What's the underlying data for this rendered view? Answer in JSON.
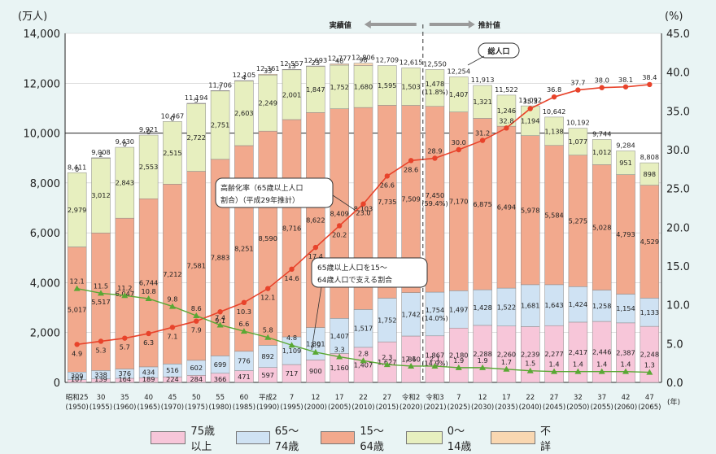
{
  "chart_data": {
    "type": "bar",
    "y_left_unit": "(万人)",
    "y_right_unit": "(%)",
    "y_left_ticks": [
      "0",
      "2,000",
      "4,000",
      "6,000",
      "8,000",
      "10,000",
      "12,000",
      "14,000"
    ],
    "y_right_ticks": [
      "0.0",
      "5.0",
      "10.0",
      "15.0",
      "20.0",
      "25.0",
      "30.0",
      "35.0",
      "40.0",
      "45.0"
    ],
    "x_unit": "(年)",
    "categories": [
      {
        "top": "昭和25",
        "bottom": "(1950)"
      },
      {
        "top": "30",
        "bottom": "(1955)"
      },
      {
        "top": "35",
        "bottom": "(1960)"
      },
      {
        "top": "40",
        "bottom": "(1965)"
      },
      {
        "top": "45",
        "bottom": "(1970)"
      },
      {
        "top": "50",
        "bottom": "(1975)"
      },
      {
        "top": "55",
        "bottom": "(1980)"
      },
      {
        "top": "60",
        "bottom": "(1985)"
      },
      {
        "top": "平成2",
        "bottom": "(1990)"
      },
      {
        "top": "7",
        "bottom": "(1995)"
      },
      {
        "top": "12",
        "bottom": "(2000)"
      },
      {
        "top": "17",
        "bottom": "(2005)"
      },
      {
        "top": "22",
        "bottom": "(2010)"
      },
      {
        "top": "27",
        "bottom": "(2015)"
      },
      {
        "top": "令和2",
        "bottom": "(2020)"
      },
      {
        "top": "令和3",
        "bottom": "(2021)"
      },
      {
        "top": "7",
        "bottom": "(2025)"
      },
      {
        "top": "12",
        "bottom": "(2030)"
      },
      {
        "top": "17",
        "bottom": "(2035)"
      },
      {
        "top": "22",
        "bottom": "(2040)"
      },
      {
        "top": "27",
        "bottom": "(2045)"
      },
      {
        "top": "32",
        "bottom": "(2050)"
      },
      {
        "top": "37",
        "bottom": "(2055)"
      },
      {
        "top": "42",
        "bottom": "(2060)"
      },
      {
        "top": "47",
        "bottom": "(2065)"
      }
    ],
    "totals": [
      "8,411",
      "9,008",
      "9,430",
      "9,921",
      "10,467",
      "11,194",
      "11,706",
      "12,105",
      "12,361",
      "12,557",
      "12,693",
      "12,777",
      "12,806",
      "12,709",
      "12,615",
      "12,550",
      "12,254",
      "11,913",
      "11,522",
      "11,092",
      "10,642",
      "10,192",
      "9,744",
      "9,284",
      "8,808"
    ],
    "total_values": [
      8411,
      9008,
      9430,
      9921,
      10467,
      11194,
      11706,
      12105,
      12361,
      12557,
      12693,
      12777,
      12806,
      12709,
      12615,
      12550,
      12254,
      11913,
      11522,
      11092,
      10642,
      10192,
      9744,
      9284,
      8808
    ],
    "series": [
      {
        "name": "75歳以上",
        "color": "#f7c6d9",
        "values": [
          107,
          139,
          164,
          189,
          224,
          284,
          366,
          471,
          597,
          717,
          900,
          1160,
          1407,
          1627,
          1860,
          1867,
          2180,
          2288,
          2260,
          2239,
          2277,
          2417,
          2446,
          2387,
          2248
        ],
        "labels": [
          "107",
          "139",
          "164",
          "189",
          "224",
          "284",
          "366",
          "471",
          "597",
          "717",
          "900",
          "1,160",
          "1,407",
          "1,627",
          "1,860",
          "1,867\n(14.9%)",
          "2,180",
          "2,288",
          "2,260",
          "2,239",
          "2,277",
          "2,417",
          "2,446",
          "2,387",
          "2,248"
        ]
      },
      {
        "name": "65～74歳",
        "color": "#cfe2f3",
        "values": [
          309,
          338,
          376,
          434,
          516,
          602,
          699,
          776,
          892,
          1109,
          1301,
          1407,
          1517,
          1752,
          1742,
          1754,
          1497,
          1428,
          1522,
          1681,
          1643,
          1424,
          1258,
          1154,
          1133
        ],
        "labels": [
          "309",
          "338",
          "376",
          "434",
          "516",
          "602",
          "699",
          "776",
          "892",
          "1,109",
          "1,301",
          "1,407",
          "1,517",
          "1,752",
          "1,742",
          "1,754\n(14.0%)",
          "1,497",
          "1,428",
          "1,522",
          "1,681",
          "1,643",
          "1,424",
          "1,258",
          "1,154",
          "1,133"
        ]
      },
      {
        "name": "15～64歳",
        "color": "#f2a98d",
        "values": [
          5017,
          5517,
          6047,
          6744,
          7212,
          7581,
          7883,
          8251,
          8590,
          8716,
          8622,
          8409,
          8103,
          7735,
          7509,
          7450,
          7170,
          6875,
          6494,
          5978,
          5584,
          5275,
          5028,
          4793,
          4529
        ],
        "labels": [
          "5,017",
          "5,517",
          "6,047",
          "6,744",
          "7,212",
          "7,581",
          "7,883",
          "8,251",
          "8,590",
          "8,716",
          "8,622",
          "8,409",
          "8,103",
          "7,735",
          "7,509",
          "7,450\n(59.4%)",
          "7,170",
          "6,875",
          "6,494",
          "5,978",
          "5,584",
          "5,275",
          "5,028",
          "4,793",
          "4,529"
        ]
      },
      {
        "name": "0～14歳",
        "color": "#e7efbf",
        "values": [
          2979,
          3012,
          2843,
          2553,
          2515,
          2722,
          2751,
          2603,
          2249,
          2001,
          1847,
          1752,
          1680,
          1595,
          1503,
          1478,
          1407,
          1321,
          1246,
          1194,
          1138,
          1077,
          1012,
          951,
          898
        ],
        "labels": [
          "2,979",
          "3,012",
          "2,843",
          "2,553",
          "2,515",
          "2,722",
          "2,751",
          "2,603",
          "2,249",
          "2,001",
          "1,847",
          "1,752",
          "1,680",
          "1,595",
          "1,503",
          "1,478\n(11.8%)",
          "1,407",
          "1,321",
          "1,246",
          "1,194",
          "1,138",
          "1,077",
          "1,012",
          "951",
          "898"
        ]
      },
      {
        "name": "不詳",
        "color": "#f9d7b1",
        "values": [
          0,
          2,
          0,
          0,
          0,
          5,
          7,
          4,
          33,
          13,
          23,
          48,
          98,
          0,
          0,
          0,
          0,
          0,
          0,
          0,
          0,
          0,
          0,
          0,
          0
        ],
        "labels": [
          "0",
          "2",
          "0",
          "0",
          "0",
          "5",
          "7",
          "4",
          "33",
          "13",
          "23",
          "48",
          "98",
          "",
          "",
          "",
          "",
          "",
          "",
          "",
          "",
          "",
          "",
          "",
          ""
        ]
      }
    ],
    "aging_rate": {
      "name": "高齢化率（65歳以上人口割合）（平成29年推計）",
      "values": [
        4.9,
        5.3,
        5.7,
        6.3,
        7.1,
        7.9,
        9.1,
        10.3,
        12.1,
        14.6,
        17.4,
        20.2,
        23.0,
        26.6,
        28.6,
        28.9,
        30.0,
        31.2,
        32.8,
        35.3,
        36.8,
        37.7,
        38.0,
        38.1,
        38.4
      ]
    },
    "support_ratio": {
      "name": "65歳以上人口を15～64歳人口で支える割合",
      "values": [
        12.1,
        11.5,
        11.2,
        10.8,
        9.8,
        8.6,
        7.4,
        6.6,
        5.8,
        4.8,
        3.9,
        3.3,
        2.8,
        2.3,
        2.1,
        2.1,
        1.9,
        1.9,
        1.7,
        1.5,
        1.4,
        1.4,
        1.4,
        1.4,
        1.3
      ]
    },
    "annotations": {
      "actual": "実績値",
      "projection": "推計値",
      "total": "総人口",
      "aging_note_1": "高齢化率（65歳以上人口",
      "aging_note_2": "割合）（平成29年推計）",
      "support_note_1": "65歳以上人口を15～",
      "support_note_2": "64歳人口で支える割合"
    }
  },
  "legend": [
    "75歳以上",
    "65～74歳",
    "15～64歳",
    "0～14歳",
    "不詳"
  ]
}
